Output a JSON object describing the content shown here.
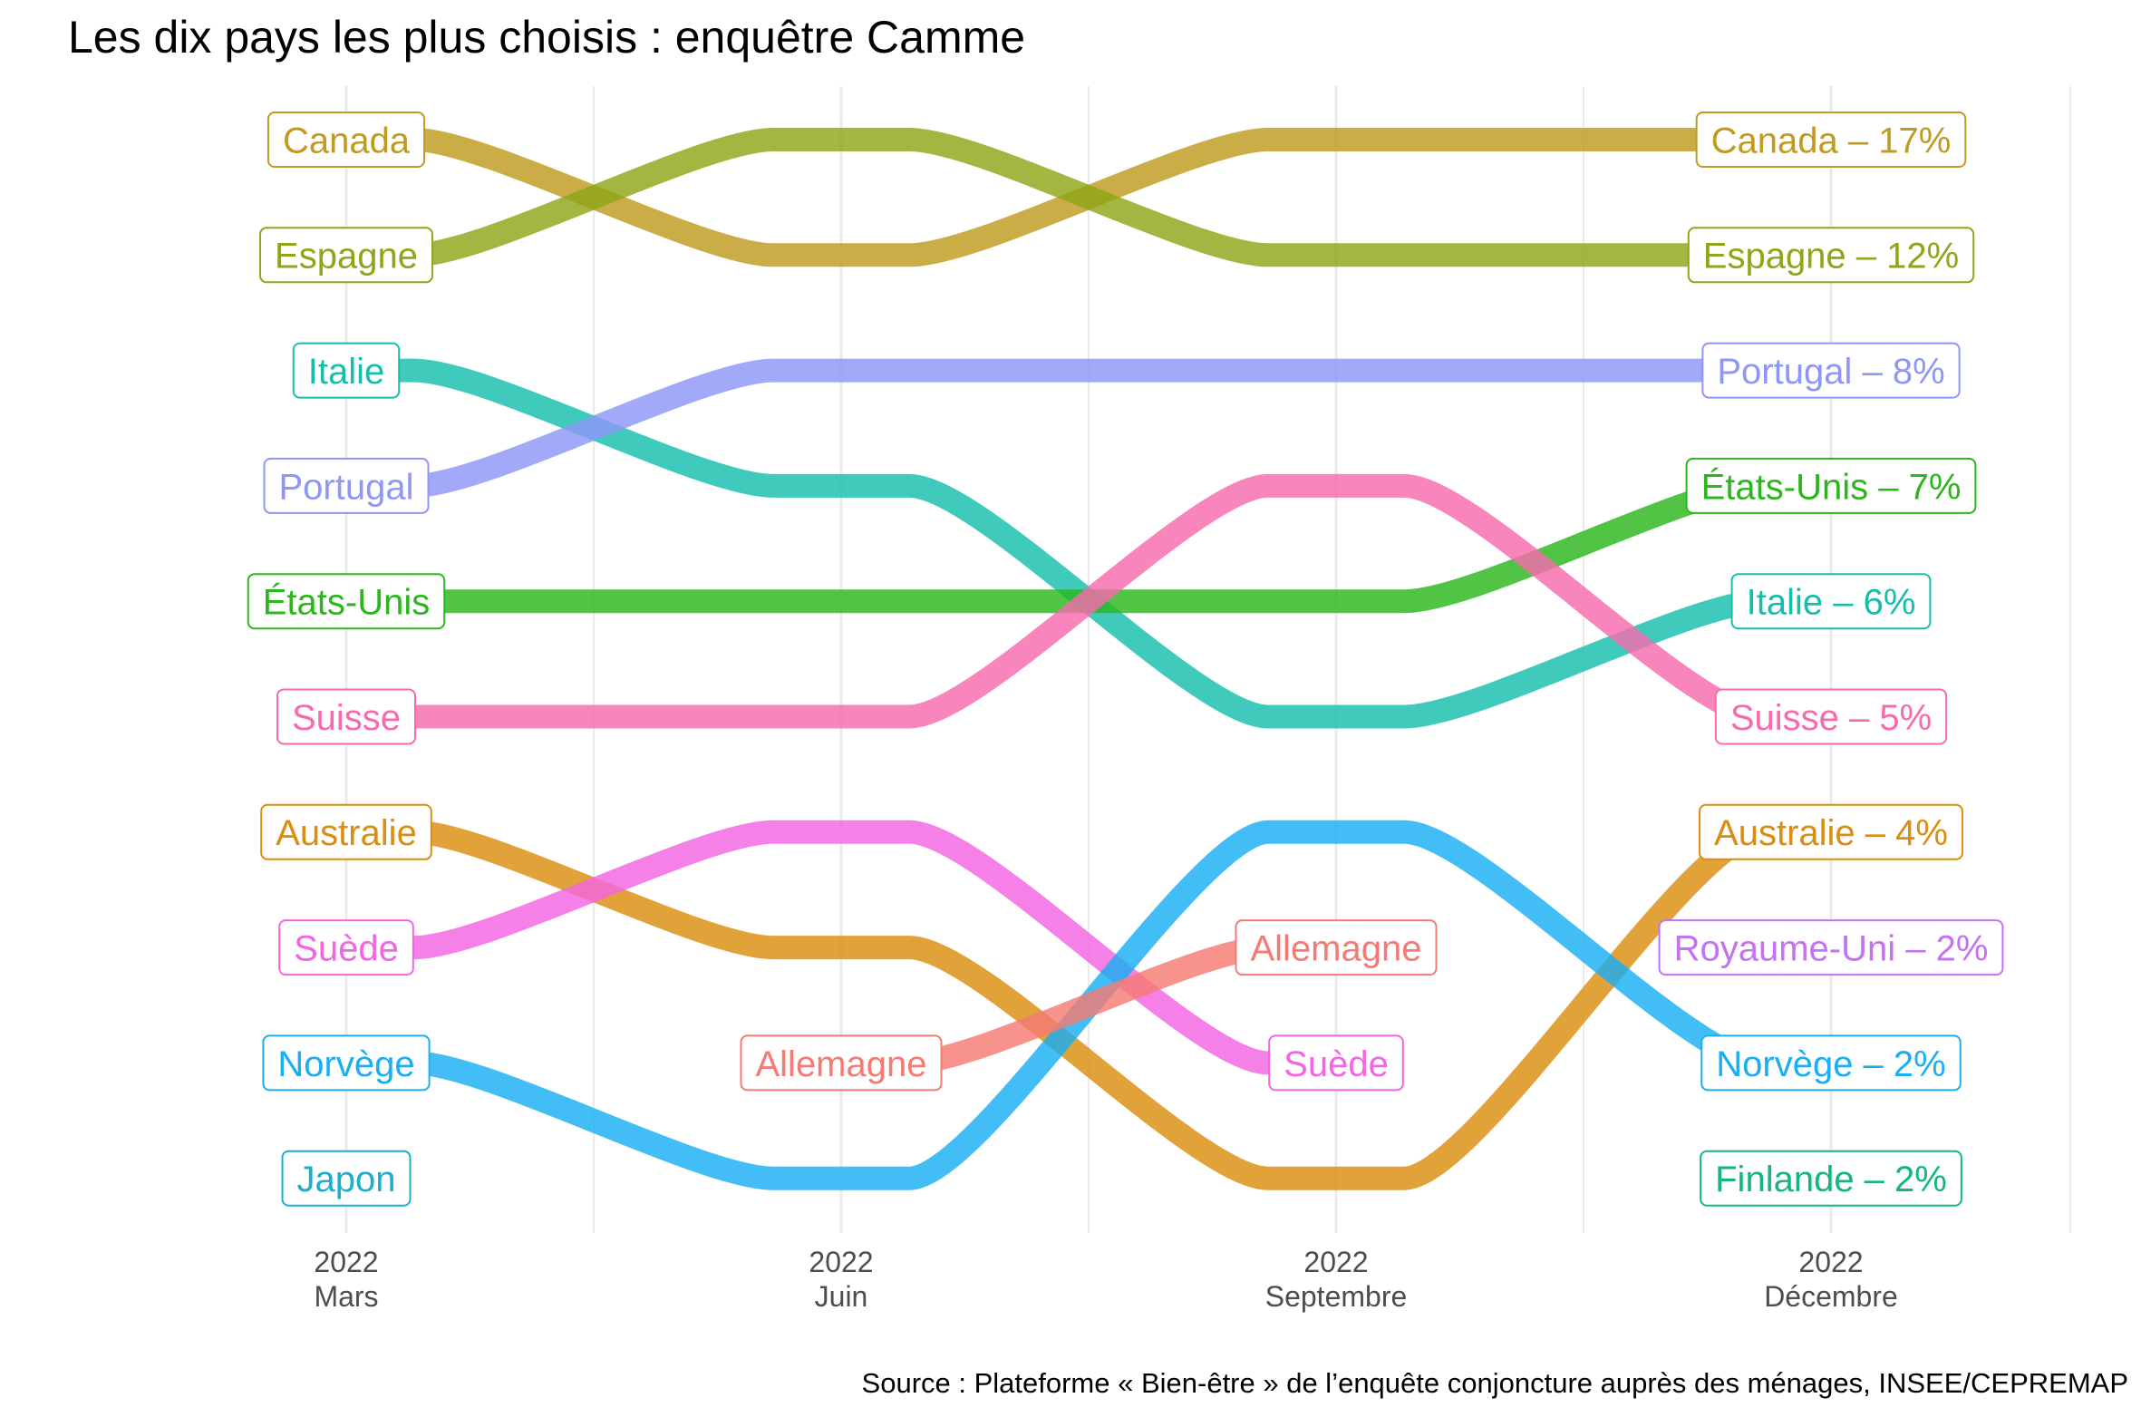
{
  "title": "Les dix pays les plus choisis : enquêtre Camme",
  "caption": "Source : Plateforme « Bien-être » de l’enquête conjoncture auprès des ménages, INSEE/CEPREMAP",
  "chart_data": {
    "type": "bump",
    "grid": true,
    "legend": "none",
    "x_ticks": [
      {
        "year": "2022",
        "month": "Mars"
      },
      {
        "year": "2022",
        "month": "Juin"
      },
      {
        "year": "2022",
        "month": "Septembre"
      },
      {
        "year": "2022",
        "month": "Décembre"
      }
    ],
    "y_reversed": true,
    "series": [
      {
        "name": "Canada",
        "color": "#C09B1F",
        "ranks": [
          1,
          2,
          1,
          1
        ],
        "final_label": "Canada – 17%"
      },
      {
        "name": "Espagne",
        "color": "#8EA617",
        "ranks": [
          2,
          1,
          2,
          2
        ],
        "final_label": "Espagne – 12%"
      },
      {
        "name": "Italie",
        "color": "#15BEAC",
        "ranks": [
          3,
          4,
          6,
          5
        ],
        "final_label": "Italie – 6%"
      },
      {
        "name": "Portugal",
        "color": "#8E96F6",
        "ranks": [
          4,
          3,
          3,
          3
        ],
        "final_label": "Portugal – 8%"
      },
      {
        "name": "États-Unis",
        "color": "#2BB71C",
        "ranks": [
          5,
          5,
          5,
          4
        ],
        "final_label": "États-Unis – 7%"
      },
      {
        "name": "Suisse",
        "color": "#F76AAD",
        "ranks": [
          6,
          6,
          4,
          6
        ],
        "final_label": "Suisse – 5%"
      },
      {
        "name": "Australie",
        "color": "#DC8D0F",
        "ranks": [
          7,
          8,
          10,
          7
        ],
        "final_label": "Australie – 4%"
      },
      {
        "name": "Suède",
        "color": "#F365E3",
        "ranks": [
          8,
          7,
          9,
          null
        ],
        "mid_label": "Suède"
      },
      {
        "name": "Norvège",
        "color": "#1AAEF3",
        "ranks": [
          9,
          10,
          7,
          9
        ],
        "final_label": "Norvège – 2%"
      },
      {
        "name": "Japon",
        "color": "#1AB0CB",
        "ranks": [
          10,
          null,
          null,
          null
        ]
      },
      {
        "name": "Allemagne",
        "color": "#F57A74",
        "ranks": [
          null,
          9,
          8,
          null
        ],
        "start_label": "Allemagne",
        "mid_label": "Allemagne"
      },
      {
        "name": "Royaume-Uni",
        "color": "#C572F2",
        "ranks": [
          null,
          null,
          null,
          8
        ],
        "final_label": "Royaume-Uni – 2%"
      },
      {
        "name": "Finlande",
        "color": "#13B77E",
        "ranks": [
          null,
          null,
          null,
          10
        ],
        "final_label": "Finlande – 2%"
      }
    ]
  }
}
